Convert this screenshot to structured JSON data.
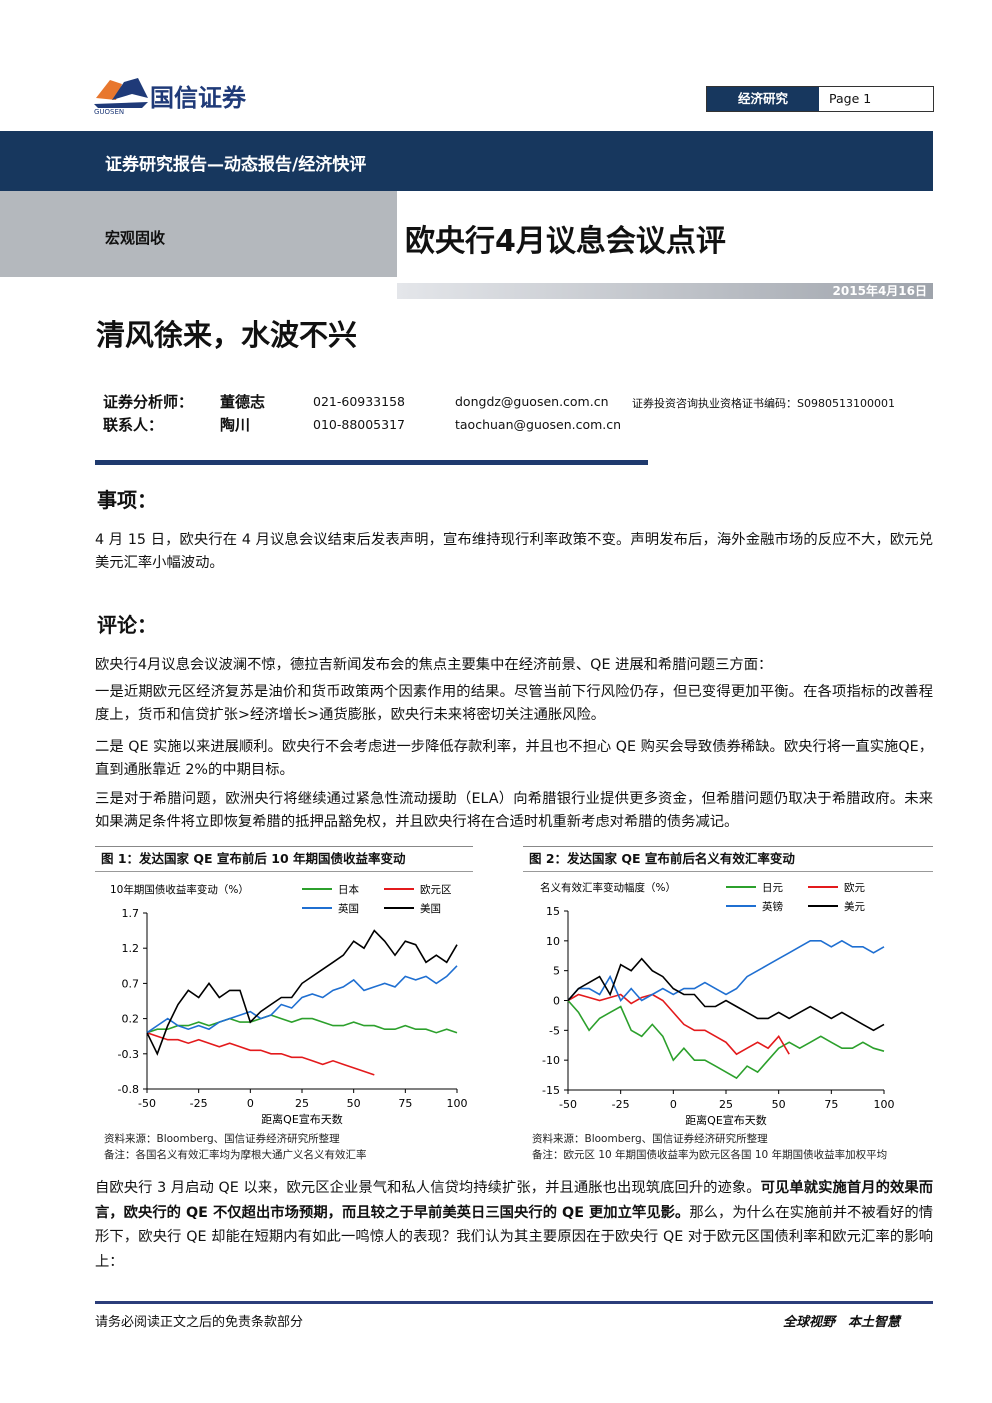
{
  "header": {
    "brand": "国信证券",
    "brand_en": "GUOSEN",
    "section": "经济研究",
    "page": "Page 1",
    "report_type": "证券研究报告—动态报告/经济快评",
    "category": "宏观固收",
    "title": "欧央行4月议息会议点评",
    "date": "2015年4月16日"
  },
  "headline": "清风徐来，水波不兴",
  "analysts": [
    {
      "role": "证券分析师：",
      "name": "董德志",
      "phone": "021-60933158",
      "email": "dongdz@guosen.com.cn",
      "license": "证券投资咨询执业资格证书编码：S0980513100001"
    },
    {
      "role": "联系人：",
      "name": "陶川",
      "phone": "010-88005317",
      "email": "taochuan@guosen.com.cn"
    }
  ],
  "sections": [
    {
      "heading": "事项：",
      "paragraphs": [
        "4 月 15 日，欧央行在 4 月议息会议结束后发表声明，宣布维持现行利率政策不变。声明发布后，海外金融市场的反应不大，欧元兑美元汇率小幅波动。"
      ]
    },
    {
      "heading": "评论：",
      "paragraphs": [
        "欧央行4月议息会议波澜不惊，德拉吉新闻发布会的焦点主要集中在经济前景、QE 进展和希腊问题三方面：",
        "一是近期欧元区经济复苏是油价和货币政策两个因素作用的结果。尽管当前下行风险仍存，但已变得更加平衡。在各项指标的改善程度上，货币和信贷扩张>经济增长>通货膨胀，欧央行未来将密切关注通胀风险。",
        "二是 QE 实施以来进展顺利。欧央行不会考虑进一步降低存款利率，并且也不担心 QE 购买会导致债券稀缺。欧央行将一直实施QE，直到通胀靠近 2%的中期目标。",
        "三是对于希腊问题，欧洲央行将继续通过紧急性流动援助（ELA）向希腊银行业提供更多资金，但希腊问题仍取决于希腊政府。未来如果满足条件将立即恢复希腊的抵押品豁免权，并且欧央行将在合适时机重新考虑对希腊的债务减记。"
      ]
    }
  ],
  "figures": [
    {
      "title": "图 1：发达国家 QE 宣布前后 10 年期国债收益率变动",
      "chart_data": {
        "type": "line",
        "y_label": "10年期国债收益率变动（%）",
        "x_label": "距离QE宣布天数",
        "x": [
          -50,
          -45,
          -40,
          -35,
          -30,
          -25,
          -20,
          -15,
          -10,
          -5,
          0,
          5,
          10,
          15,
          20,
          25,
          30,
          35,
          40,
          45,
          50,
          55,
          60,
          65,
          70,
          75,
          80,
          85,
          90,
          95,
          100
        ],
        "xlim": [
          -50,
          100
        ],
        "xticks": [
          -50,
          -25,
          0,
          25,
          50,
          75,
          100
        ],
        "ylim": [
          -0.8,
          1.7
        ],
        "yticks": [
          -0.8,
          -0.3,
          0.2,
          0.7,
          1.2,
          1.7
        ],
        "legend": "top",
        "series": [
          {
            "name": "日本",
            "color": "#2ca02c",
            "values": [
              0,
              0.05,
              0.05,
              0.1,
              0.1,
              0.15,
              0.1,
              0.15,
              0.2,
              0.15,
              0.15,
              0.2,
              0.25,
              0.2,
              0.15,
              0.2,
              0.2,
              0.15,
              0.1,
              0.1,
              0.15,
              0.1,
              0.1,
              0.05,
              0.05,
              0.1,
              0.05,
              0.05,
              0,
              0.05,
              0
            ]
          },
          {
            "name": "欧元区",
            "color": "#e31a1c",
            "values": [
              0,
              -0.05,
              -0.1,
              -0.1,
              -0.15,
              -0.1,
              -0.15,
              -0.2,
              -0.15,
              -0.2,
              -0.25,
              -0.25,
              -0.3,
              -0.3,
              -0.35,
              -0.35,
              -0.4,
              -0.45,
              -0.4,
              -0.45,
              -0.5,
              -0.55,
              -0.6,
              null,
              null,
              null,
              null,
              null,
              null,
              null,
              null
            ]
          },
          {
            "name": "英国",
            "color": "#1f6fd1",
            "values": [
              0,
              0.1,
              0.2,
              0.1,
              0.05,
              0.1,
              0.05,
              0.15,
              0.2,
              0.25,
              0.3,
              0.2,
              0.25,
              0.4,
              0.35,
              0.5,
              0.55,
              0.5,
              0.6,
              0.65,
              0.75,
              0.6,
              0.65,
              0.7,
              0.65,
              0.8,
              0.75,
              0.8,
              0.7,
              0.8,
              0.95
            ]
          },
          {
            "name": "美国",
            "color": "#000000",
            "values": [
              0,
              -0.3,
              0.1,
              0.4,
              0.6,
              0.5,
              0.7,
              0.5,
              0.6,
              0.6,
              0.15,
              0.3,
              0.4,
              0.5,
              0.5,
              0.7,
              0.8,
              0.9,
              1.0,
              1.1,
              1.3,
              1.2,
              1.45,
              1.3,
              1.1,
              1.3,
              1.25,
              1.0,
              1.1,
              1.0,
              1.25
            ]
          }
        ]
      },
      "source": "资料来源：Bloomberg、国信证券经济研究所整理",
      "note": "备注：各国名义有效汇率均为摩根大通广义名义有效汇率"
    },
    {
      "title": "图 2：发达国家 QE 宣布前后名义有效汇率变动",
      "chart_data": {
        "type": "line",
        "y_label": "名义有效汇率变动幅度（%）",
        "x_label": "距离QE宣布天数",
        "x": [
          -50,
          -45,
          -40,
          -35,
          -30,
          -25,
          -20,
          -15,
          -10,
          -5,
          0,
          5,
          10,
          15,
          20,
          25,
          30,
          35,
          40,
          45,
          50,
          55,
          60,
          65,
          70,
          75,
          80,
          85,
          90,
          95,
          100
        ],
        "xlim": [
          -50,
          100
        ],
        "xticks": [
          -50,
          -25,
          0,
          25,
          50,
          75,
          100
        ],
        "ylim": [
          -15,
          15
        ],
        "yticks": [
          -15,
          -10,
          -5,
          0,
          5,
          10,
          15
        ],
        "legend": "top",
        "series": [
          {
            "name": "日元",
            "color": "#2ca02c",
            "values": [
              0,
              -2,
              -5,
              -3,
              -2,
              -1,
              -5,
              -6,
              -4,
              -6,
              -10,
              -8,
              -10,
              -10,
              -11,
              -12,
              -13,
              -11,
              -12,
              -10,
              -8,
              -7,
              -8,
              -7,
              -6,
              -7,
              -8,
              -8,
              -7,
              -8,
              -8.5
            ]
          },
          {
            "name": "欧元",
            "color": "#e31a1c",
            "values": [
              0,
              1,
              0.5,
              0,
              0.5,
              1,
              -0.5,
              0.5,
              1,
              0,
              -2,
              -4,
              -5,
              -5,
              -6,
              -7,
              -9,
              -8,
              -7,
              -8,
              -6,
              -9,
              null,
              null,
              null,
              null,
              null,
              null,
              null,
              null,
              null
            ]
          },
          {
            "name": "英镑",
            "color": "#1f6fd1",
            "values": [
              0,
              2,
              2,
              1,
              4,
              0,
              2,
              0,
              1,
              2,
              1,
              2,
              2,
              3,
              2,
              1,
              2,
              4,
              5,
              6,
              7,
              8,
              9,
              10,
              10,
              9,
              10,
              9,
              9,
              8,
              9
            ]
          },
          {
            "name": "美元",
            "color": "#000000",
            "values": [
              0,
              2,
              3,
              4,
              1,
              6,
              5,
              7,
              5,
              4,
              2,
              1,
              1,
              -1,
              -1,
              0,
              -1,
              -2,
              -3,
              -3,
              -2,
              -3,
              -2,
              -1,
              -2,
              -3,
              -2,
              -3,
              -4,
              -5,
              -4
            ]
          }
        ]
      },
      "source": "资料来源：Bloomberg、国信证券经济研究所整理",
      "note": "备注：欧元区 10 年期国债收益率为欧元区各国 10 年期国债收益率加权平均"
    }
  ],
  "closing": {
    "parts": [
      {
        "text": "自欧央行 3 月启动 QE 以来，欧元区企业景气和私人信贷均持续扩张，并且通胀也出现筑底回升的迹象。",
        "bold": false
      },
      {
        "text": "可见单就实施首月的效果而言，欧央行的 QE 不仅超出市场预期，而且较之于早前美英日三国央行的 QE 更加立竿见影。",
        "bold": true
      },
      {
        "text": "那么，为什么在实施前并不被看好的情形下，欧央行 QE 却能在短期内有如此一鸣惊人的表现？我们认为其主要原因在于欧央行 QE 对于欧元区国债利率和欧元汇率的影响上：",
        "bold": false
      }
    ]
  },
  "footer": {
    "disclaimer": "请务必阅读正文之后的免责条款部分",
    "slogan": "全球视野　本土智慧"
  }
}
